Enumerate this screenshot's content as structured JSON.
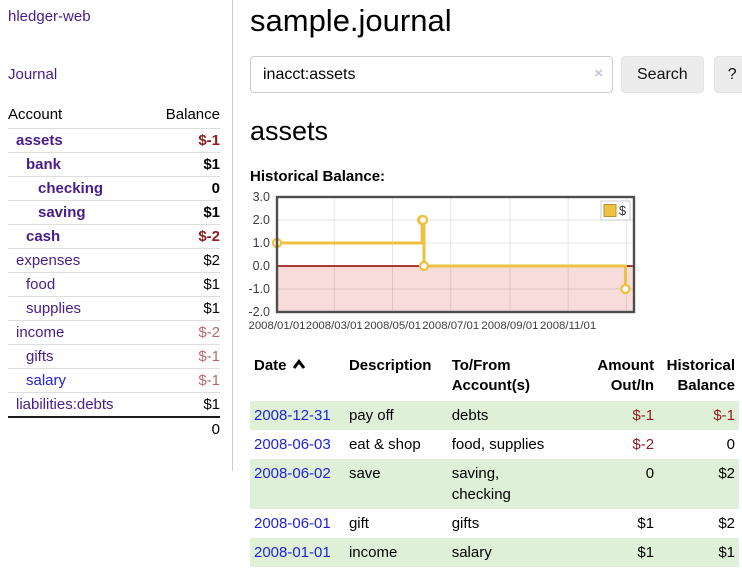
{
  "colors": {
    "link_purple": "#471d8a",
    "link_blue": "#2222dd",
    "neg_strong": "#8f1d21",
    "neg_muted": "#b56a6a",
    "row_green": "#dff0d8",
    "chart_gold": "#EDC240",
    "chart_negative_fill": "#f8dcdc",
    "chart_zero_line": "#8b0000"
  },
  "sidebar": {
    "app_title": "hledger-web",
    "journal_link": "Journal",
    "headers": {
      "account": "Account",
      "balance": "Balance"
    },
    "accounts": [
      {
        "name": "assets",
        "depth": 1,
        "bold": true,
        "link_color": "purple",
        "balance": "$-1",
        "balance_color": "neg-strong"
      },
      {
        "name": "bank",
        "depth": 2,
        "bold": true,
        "link_color": "purple",
        "balance": "$1",
        "balance_color": "normal"
      },
      {
        "name": "checking",
        "depth": 3,
        "bold": true,
        "link_color": "purple",
        "balance": "0",
        "balance_color": "normal"
      },
      {
        "name": "saving",
        "depth": 3,
        "bold": true,
        "link_color": "purple",
        "balance": "$1",
        "balance_color": "normal"
      },
      {
        "name": "cash",
        "depth": 2,
        "bold": true,
        "link_color": "purple",
        "balance": "$-2",
        "balance_color": "neg-strong"
      },
      {
        "name": "expenses",
        "depth": 1,
        "bold": false,
        "link_color": "purple",
        "balance": "$2",
        "balance_color": "normal"
      },
      {
        "name": "food",
        "depth": 2,
        "bold": false,
        "link_color": "purple",
        "balance": "$1",
        "balance_color": "normal"
      },
      {
        "name": "supplies",
        "depth": 2,
        "bold": false,
        "link_color": "purple",
        "balance": "$1",
        "balance_color": "normal"
      },
      {
        "name": "income",
        "depth": 1,
        "bold": false,
        "link_color": "purple",
        "balance": "$-2",
        "balance_color": "neg-muted"
      },
      {
        "name": "gifts",
        "depth": 2,
        "bold": false,
        "link_color": "purple",
        "balance": "$-1",
        "balance_color": "neg-muted"
      },
      {
        "name": "salary",
        "depth": 2,
        "bold": false,
        "link_color": "blue",
        "balance": "$-1",
        "balance_color": "neg-muted"
      },
      {
        "name": "liabilities:debts",
        "depth": 1,
        "bold": false,
        "link_color": "purple",
        "balance": "$1",
        "balance_color": "normal"
      }
    ],
    "total": "0"
  },
  "main": {
    "title": "sample.journal",
    "search": {
      "value": "inacct:assets",
      "clear_icon": "×",
      "button_label": "Search",
      "help_label": "?"
    },
    "account_heading": "assets",
    "register": {
      "headers": {
        "date": "Date",
        "description": "Description",
        "tofrom_line1": "To/From",
        "tofrom_line2": "Account(s)",
        "amount_line1": "Amount",
        "amount_line2": "Out/In",
        "balance_line1": "Historical",
        "balance_line2": "Balance"
      },
      "rows": [
        {
          "date": "2008-12-31",
          "description": "pay off",
          "accounts": [
            "debts"
          ],
          "amount": "$-1",
          "amount_color": "neg-strong",
          "balance": "$-1",
          "balance_color": "neg-strong",
          "shaded": true
        },
        {
          "date": "2008-06-03",
          "description": "eat & shop",
          "accounts": [
            "food, supplies"
          ],
          "amount": "$-2",
          "amount_color": "neg-strong",
          "balance": "0",
          "balance_color": "normal",
          "shaded": false
        },
        {
          "date": "2008-06-02",
          "description": "save",
          "accounts": [
            "saving,",
            "checking"
          ],
          "amount": "0",
          "amount_color": "normal",
          "balance": "$2",
          "balance_color": "normal",
          "shaded": true
        },
        {
          "date": "2008-06-01",
          "description": "gift",
          "accounts": [
            "gifts"
          ],
          "amount": "$1",
          "amount_color": "normal",
          "balance": "$2",
          "balance_color": "normal",
          "shaded": false
        },
        {
          "date": "2008-01-01",
          "description": "income",
          "accounts": [
            "salary"
          ],
          "amount": "$1",
          "amount_color": "normal",
          "balance": "$1",
          "balance_color": "normal",
          "shaded": true
        }
      ]
    }
  },
  "chart_data": {
    "type": "line",
    "title": "Historical Balance:",
    "style": "step-after with open circle markers",
    "legend_position": "top-right",
    "x_domain": [
      "2008-01-01",
      "2009-01-09"
    ],
    "ylim": [
      -2,
      3
    ],
    "yticks": [
      3.0,
      2.0,
      1.0,
      0.0,
      -1.0,
      -2.0
    ],
    "ygridlines": [
      2,
      1,
      0,
      -1
    ],
    "xticks": [
      {
        "date": "2008-01-01",
        "label": "2008/01/01"
      },
      {
        "date": "2008-03-01",
        "label": "2008/03/01"
      },
      {
        "date": "2008-05-01",
        "label": "2008/05/01"
      },
      {
        "date": "2008-07-01",
        "label": "2008/07/01"
      },
      {
        "date": "2008-09-01",
        "label": "2008/09/01"
      },
      {
        "date": "2008-11-01",
        "label": "2008/11/01"
      }
    ],
    "x_gridlines": [
      "2008-03-01",
      "2008-05-01",
      "2008-07-01",
      "2008-09-01",
      "2008-11-01",
      "2009-01-01"
    ],
    "negative_region_shaded": true,
    "series": [
      {
        "name": "$",
        "color": "#EDC240",
        "points": [
          [
            "2008-01-01",
            1
          ],
          [
            "2008-06-01",
            2
          ],
          [
            "2008-06-02",
            2
          ],
          [
            "2008-06-03",
            0
          ],
          [
            "2008-12-31",
            -1
          ]
        ]
      }
    ]
  }
}
